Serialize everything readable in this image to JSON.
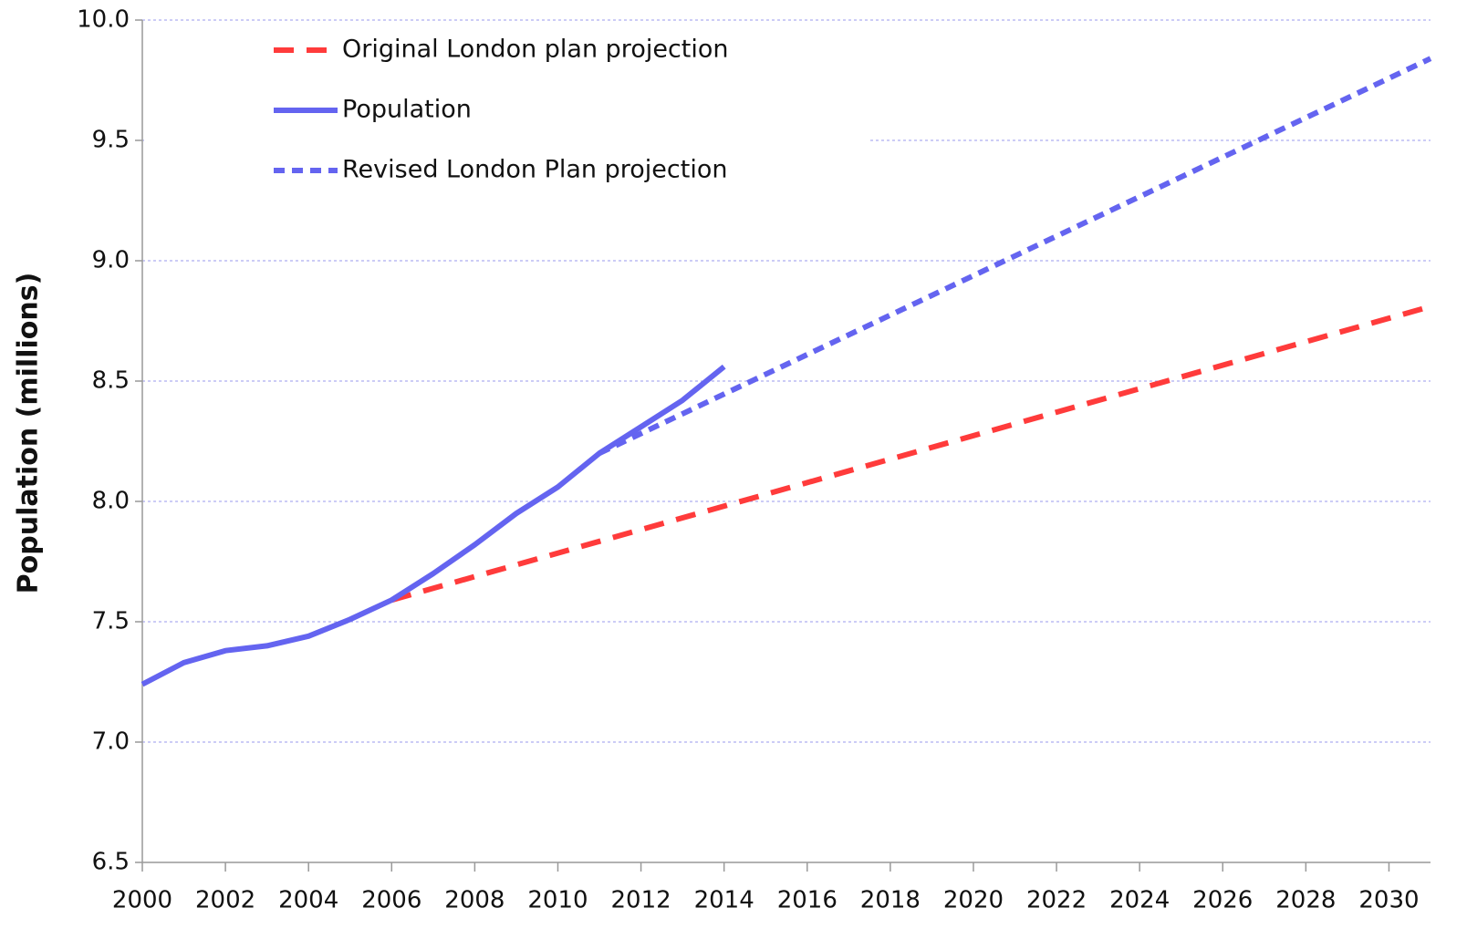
{
  "chart_data": {
    "type": "line",
    "y_label": "Population (millions)",
    "xlim": [
      2000,
      2031
    ],
    "xticks": [
      2000,
      2002,
      2004,
      2006,
      2008,
      2010,
      2012,
      2014,
      2016,
      2018,
      2020,
      2022,
      2024,
      2026,
      2028,
      2030
    ],
    "ylim": [
      6.5,
      10
    ],
    "yticks": [
      {
        "value": 6.5,
        "label": "6.5"
      },
      {
        "value": 7,
        "label": "7.0"
      },
      {
        "value": 7.5,
        "label": "7.5"
      },
      {
        "value": 8,
        "label": "8.0"
      },
      {
        "value": 8.5,
        "label": "8.5"
      },
      {
        "value": 9,
        "label": "9.0"
      },
      {
        "value": 9.5,
        "label": "9.5"
      },
      {
        "value": 10,
        "label": "10.0"
      }
    ],
    "grid": true,
    "legend": "top-left",
    "series": [
      {
        "name": "Original London plan projection",
        "color": "#ff3b3b",
        "dash": "long",
        "x": [
          2006,
          2031
        ],
        "values": [
          7.59,
          8.81
        ]
      },
      {
        "name": "Population",
        "color": "#6464f0",
        "dash": "solid",
        "x": [
          2000,
          2001,
          2002,
          2003,
          2004,
          2005,
          2006,
          2007,
          2008,
          2009,
          2010,
          2011,
          2012,
          2013,
          2014
        ],
        "values": [
          7.24,
          7.33,
          7.38,
          7.4,
          7.44,
          7.51,
          7.59,
          7.7,
          7.82,
          7.95,
          8.06,
          8.2,
          8.31,
          8.42,
          8.56
        ]
      },
      {
        "name": "Revised London Plan projection",
        "color": "#6464f0",
        "dash": "short",
        "x": [
          2011,
          2031
        ],
        "values": [
          8.2,
          9.84
        ]
      }
    ]
  }
}
